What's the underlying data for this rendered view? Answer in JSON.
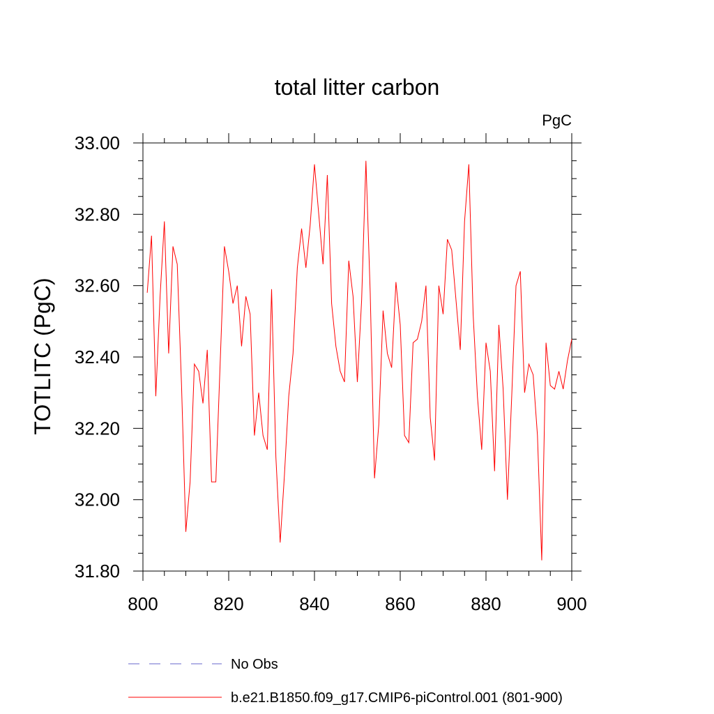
{
  "chart_data": {
    "type": "line",
    "title": "total litter carbon",
    "units_label": "PgC",
    "xlabel": "",
    "ylabel": "TOTLITC  (PgC)",
    "xlim": [
      800,
      900
    ],
    "ylim": [
      31.8,
      33.0
    ],
    "xticks": [
      "800",
      "820",
      "840",
      "860",
      "880",
      "900"
    ],
    "yticks": [
      "31.80",
      "32.00",
      "32.20",
      "32.40",
      "32.60",
      "32.80",
      "33.00"
    ],
    "series": [
      {
        "name": "b.e21.B1850.f09_g17.CMIP6-piControl.001 (801-900)",
        "color": "#ff0000",
        "x_start": 801,
        "values": [
          32.58,
          32.74,
          32.29,
          32.57,
          32.78,
          32.41,
          32.71,
          32.66,
          32.32,
          31.91,
          32.05,
          32.38,
          32.36,
          32.27,
          32.42,
          32.05,
          32.05,
          32.38,
          32.71,
          32.64,
          32.55,
          32.6,
          32.43,
          32.57,
          32.52,
          32.18,
          32.3,
          32.18,
          32.14,
          32.59,
          32.12,
          31.88,
          32.07,
          32.29,
          32.41,
          32.65,
          32.76,
          32.65,
          32.77,
          32.94,
          32.8,
          32.66,
          32.91,
          32.55,
          32.43,
          32.36,
          32.33,
          32.67,
          32.57,
          32.33,
          32.56,
          32.95,
          32.58,
          32.06,
          32.21,
          32.53,
          32.41,
          32.37,
          32.61,
          32.49,
          32.18,
          32.16,
          32.44,
          32.45,
          32.5,
          32.6,
          32.23,
          32.11,
          32.6,
          32.52,
          32.73,
          32.7,
          32.56,
          32.42,
          32.78,
          32.94,
          32.52,
          32.29,
          32.14,
          32.44,
          32.36,
          32.08,
          32.49,
          32.31,
          32.0,
          32.29,
          32.6,
          32.64,
          32.3,
          32.38,
          32.35,
          32.18,
          31.83,
          32.44,
          32.32,
          32.31,
          32.36,
          32.31,
          32.39,
          32.45
        ]
      }
    ],
    "legend": [
      {
        "label": "No Obs",
        "color": "#6666cc",
        "style": "dashed"
      },
      {
        "label": "b.e21.B1850.f09_g17.CMIP6-piControl.001 (801-900)",
        "color": "#ff0000",
        "style": "solid"
      }
    ]
  }
}
